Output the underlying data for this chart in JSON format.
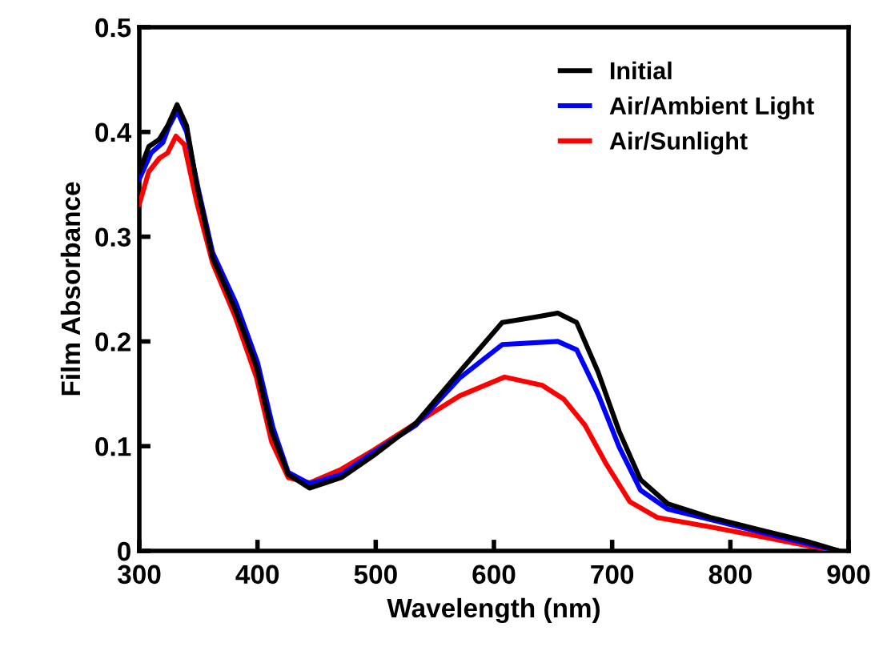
{
  "chart_data": {
    "type": "line",
    "xlabel": "Wavelength (nm)",
    "ylabel": "Film Absorbance",
    "xlim": [
      300,
      900
    ],
    "xticks": [
      300,
      400,
      500,
      600,
      700,
      800,
      900
    ],
    "ylim": [
      0,
      0.5
    ],
    "yticks": [
      0,
      0.1,
      0.2,
      0.3,
      0.4,
      0.5
    ],
    "grid": false,
    "legend": "top right",
    "line_style": "solid",
    "marker": "none",
    "series": [
      {
        "name": "Initial",
        "color": "#000000",
        "x": [
          300,
          308,
          317,
          324,
          332,
          340,
          349,
          362,
          381,
          399,
          412,
          426,
          444,
          471,
          498,
          534,
          571,
          607,
          634,
          654,
          670,
          688,
          706,
          724,
          747,
          783,
          829,
          865,
          892
        ],
        "values": [
          0.362,
          0.386,
          0.393,
          0.406,
          0.426,
          0.406,
          0.347,
          0.28,
          0.231,
          0.176,
          0.114,
          0.073,
          0.06,
          0.07,
          0.091,
          0.122,
          0.171,
          0.218,
          0.223,
          0.227,
          0.218,
          0.171,
          0.114,
          0.068,
          0.045,
          0.032,
          0.019,
          0.009,
          0.0
        ]
      },
      {
        "name": "Air/Ambient Light",
        "color": "#0000ff",
        "x": [
          300,
          310,
          320,
          325,
          332,
          340,
          350,
          362,
          382,
          400,
          413,
          426,
          444,
          471,
          498,
          534,
          571,
          607,
          654,
          670,
          688,
          706,
          724,
          747,
          783,
          829,
          865,
          892
        ],
        "values": [
          0.355,
          0.38,
          0.39,
          0.405,
          0.42,
          0.4,
          0.345,
          0.285,
          0.236,
          0.18,
          0.118,
          0.075,
          0.064,
          0.073,
          0.094,
          0.12,
          0.165,
          0.197,
          0.2,
          0.192,
          0.15,
          0.099,
          0.058,
          0.04,
          0.03,
          0.017,
          0.007,
          0.0
        ]
      },
      {
        "name": "Air/Sunlight",
        "color": "#ff0000",
        "x": [
          300,
          308,
          317,
          324,
          331,
          338,
          349,
          362,
          381,
          399,
          412,
          426,
          444,
          471,
          498,
          534,
          571,
          609,
          641,
          659,
          677,
          695,
          715,
          738,
          783,
          829,
          865,
          892
        ],
        "values": [
          0.331,
          0.362,
          0.375,
          0.38,
          0.396,
          0.388,
          0.331,
          0.275,
          0.224,
          0.166,
          0.104,
          0.07,
          0.065,
          0.078,
          0.096,
          0.122,
          0.148,
          0.166,
          0.158,
          0.145,
          0.12,
          0.083,
          0.047,
          0.032,
          0.023,
          0.013,
          0.005,
          0.0
        ]
      }
    ]
  }
}
